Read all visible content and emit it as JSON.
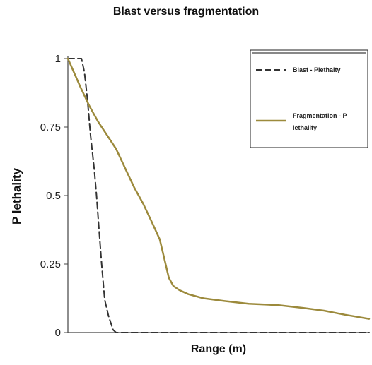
{
  "chart_data": {
    "type": "line",
    "title": "Blast versus fragmentation",
    "xlabel": "Range (m)",
    "ylabel": "P lethality",
    "ylim": [
      0,
      1
    ],
    "xlim": [
      0,
      100
    ],
    "y_ticks": [
      {
        "value": 0,
        "label": "0"
      },
      {
        "value": 0.25,
        "label": "0.25"
      },
      {
        "value": 0.5,
        "label": "0.5"
      },
      {
        "value": 0.75,
        "label": "0.75"
      },
      {
        "value": 1,
        "label": "1"
      }
    ],
    "grid": false,
    "legend_placement": "top-right",
    "series": [
      {
        "name": "Blast - Plethalty",
        "style": "dashed",
        "color": "#333333",
        "points": [
          [
            0,
            1
          ],
          [
            4.5,
            1
          ],
          [
            5.5,
            0.95
          ],
          [
            6.5,
            0.85
          ],
          [
            7.5,
            0.72
          ],
          [
            8.7,
            0.6
          ],
          [
            9.5,
            0.5
          ],
          [
            10.3,
            0.38
          ],
          [
            11.2,
            0.25
          ],
          [
            12.2,
            0.12
          ],
          [
            13.5,
            0.06
          ],
          [
            15,
            0.01
          ],
          [
            16,
            0
          ],
          [
            100,
            0
          ]
        ]
      },
      {
        "name": "Fragmentation - P lethality",
        "style": "solid",
        "color": "#9c8a3c",
        "points": [
          [
            0,
            1
          ],
          [
            2,
            0.95
          ],
          [
            4,
            0.9
          ],
          [
            7,
            0.83
          ],
          [
            10,
            0.77
          ],
          [
            13,
            0.72
          ],
          [
            16,
            0.67
          ],
          [
            19,
            0.6
          ],
          [
            22,
            0.53
          ],
          [
            25,
            0.47
          ],
          [
            28,
            0.4
          ],
          [
            30.5,
            0.34
          ],
          [
            32,
            0.27
          ],
          [
            33.5,
            0.2
          ],
          [
            35,
            0.17
          ],
          [
            37,
            0.155
          ],
          [
            40,
            0.14
          ],
          [
            45,
            0.125
          ],
          [
            52,
            0.115
          ],
          [
            60,
            0.105
          ],
          [
            70,
            0.1
          ],
          [
            78,
            0.09
          ],
          [
            85,
            0.08
          ],
          [
            92,
            0.065
          ],
          [
            100,
            0.05
          ]
        ]
      }
    ]
  },
  "legend": {
    "blast_label": "Blast - Plethalty",
    "frag_label_line1": "Fragmentation - P",
    "frag_label_line2": "lethality"
  }
}
